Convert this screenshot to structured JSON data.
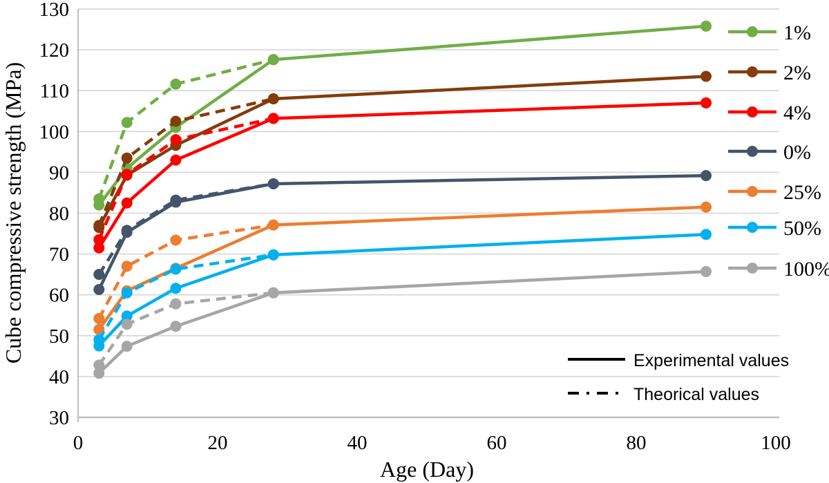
{
  "chart_data": {
    "type": "line",
    "title": "",
    "xlabel": "Age (Day)",
    "ylabel": "Cube compressive strength (MPa)",
    "xlim": [
      0,
      100
    ],
    "ylim": [
      30,
      130
    ],
    "x_ticks": [
      0,
      20,
      40,
      60,
      80,
      100
    ],
    "y_ticks": [
      30,
      40,
      50,
      60,
      70,
      80,
      90,
      100,
      110,
      120,
      130
    ],
    "grid": "horizontal",
    "legend_position": "right",
    "x": [
      3,
      7,
      14,
      28,
      90
    ],
    "theoretical_x": [
      3,
      7,
      14,
      28
    ],
    "series": [
      {
        "name": "1%",
        "color": "#70AD47",
        "experimental": [
          82.0,
          91.0,
          101.0,
          117.6,
          125.8
        ],
        "theoretical": [
          83.5,
          102.2,
          111.6,
          117.6
        ]
      },
      {
        "name": "2%",
        "color": "#843C0C",
        "experimental": [
          76.5,
          89.3,
          96.6,
          108.0,
          113.5
        ],
        "theoretical": [
          77.0,
          93.5,
          102.5,
          108.0
        ]
      },
      {
        "name": "4%",
        "color": "#FF0000",
        "experimental": [
          71.5,
          82.5,
          93.0,
          103.2,
          107.0
        ],
        "theoretical": [
          73.5,
          89.5,
          98.0,
          103.2
        ]
      },
      {
        "name": "0%",
        "color": "#44546A",
        "experimental": [
          61.3,
          75.3,
          82.7,
          87.2,
          89.2
        ],
        "theoretical": [
          65.0,
          75.8,
          83.2,
          87.2
        ]
      },
      {
        "name": "25%",
        "color": "#ED7D31",
        "experimental": [
          51.5,
          61.0,
          66.5,
          77.1,
          81.5
        ],
        "theoretical": [
          54.2,
          67.0,
          73.4,
          77.1
        ]
      },
      {
        "name": "50%",
        "color": "#00B0F0",
        "experimental": [
          47.5,
          54.8,
          61.6,
          69.8,
          74.8
        ],
        "theoretical": [
          49.0,
          60.5,
          66.3,
          69.8
        ]
      },
      {
        "name": "100%",
        "color": "#A6A6A6",
        "experimental": [
          40.8,
          47.4,
          52.3,
          60.5,
          65.7
        ],
        "theoretical": [
          42.8,
          52.8,
          57.8,
          60.5
        ]
      }
    ],
    "line_style_legend": [
      {
        "label": "Experimental values",
        "style": "solid"
      },
      {
        "label": "Theorical values",
        "style": "dashed"
      }
    ],
    "style": {
      "grid_color": "#D9D9D9",
      "axis_color": "#BFBFBF",
      "text_color": "#000000"
    }
  }
}
